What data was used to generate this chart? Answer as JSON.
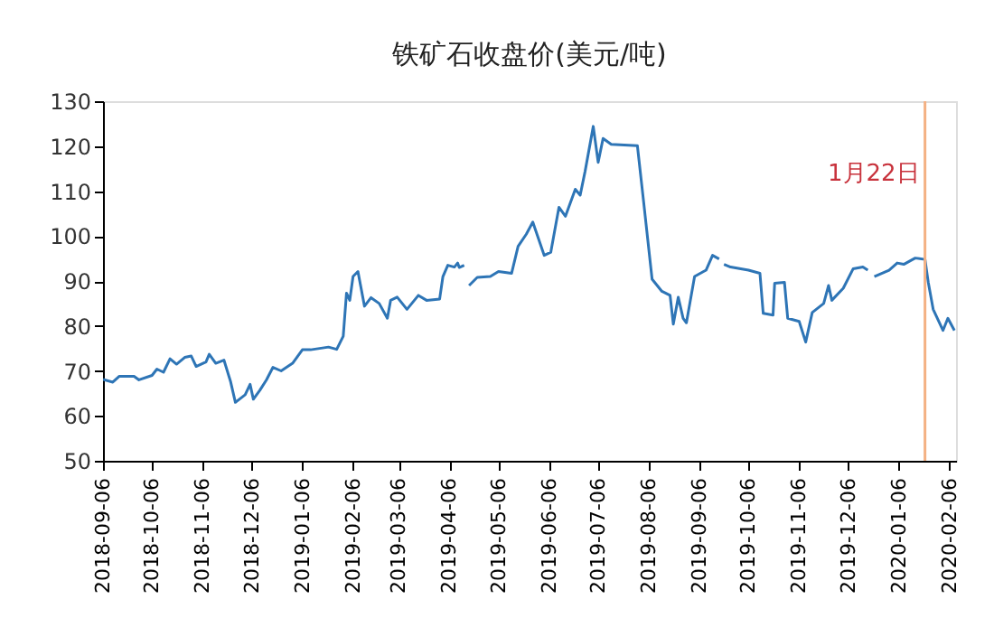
{
  "chart_data": {
    "type": "line",
    "title": "铁矿石收盘价(美元/吨)",
    "x": [
      "2018-09-06",
      "2018-09-12",
      "2018-09-16",
      "2018-09-25",
      "2018-09-28",
      "2018-10-06",
      "2018-10-09",
      "2018-10-13",
      "2018-10-17",
      "2018-10-21",
      "2018-10-26",
      "2018-10-30",
      "2018-11-02",
      "2018-11-08",
      "2018-11-10",
      "2018-11-14",
      "2018-11-19",
      "2018-11-23",
      "2018-11-26",
      "2018-12-02",
      "2018-12-05",
      "2018-12-07",
      "2018-12-11",
      "2018-12-15",
      "2018-12-19",
      "2018-12-24",
      "2018-12-31",
      "2019-01-06",
      "2019-01-11",
      "2019-01-22",
      "2019-01-27",
      "2019-01-31",
      "2019-02-02",
      "2019-02-04",
      "2019-02-06",
      "2019-02-09",
      "2019-02-13",
      "2019-02-17",
      "2019-02-22",
      "2019-02-27",
      "2019-03-01",
      "2019-03-05",
      "2019-03-11",
      "2019-03-18",
      "2019-03-23",
      "2019-03-31",
      "2019-04-02",
      "2019-04-05",
      "2019-04-09",
      "2019-04-11",
      "2019-04-12",
      "2019-04-15",
      "2019-04-16",
      "2019-04-18",
      "2019-04-23",
      "2019-05-01",
      "2019-05-06",
      "2019-05-14",
      "2019-05-18",
      "2019-05-23",
      "2019-05-27",
      "2019-06-03",
      "2019-06-07",
      "2019-06-12",
      "2019-06-16",
      "2019-06-22",
      "2019-06-25",
      "2019-06-28",
      "2019-07-03",
      "2019-07-06",
      "2019-07-09",
      "2019-07-14",
      "2019-07-30",
      "2019-08-03",
      "2019-08-08",
      "2019-08-14",
      "2019-08-19",
      "2019-08-21",
      "2019-08-24",
      "2019-08-27",
      "2019-08-29",
      "2019-09-03",
      "2019-09-10",
      "2019-09-14",
      "2019-09-18",
      "2019-09-20",
      "2019-09-21",
      "2019-09-25",
      "2019-10-06",
      "2019-10-13",
      "2019-10-15",
      "2019-10-21",
      "2019-10-22",
      "2019-10-28",
      "2019-10-30",
      "2019-11-06",
      "2019-11-10",
      "2019-11-14",
      "2019-11-21",
      "2019-11-24",
      "2019-11-26",
      "2019-12-03",
      "2019-12-09",
      "2019-12-15",
      "2019-12-18",
      "2019-12-20",
      "2019-12-22",
      "2019-12-31",
      "2020-01-05",
      "2020-01-09",
      "2020-01-16",
      "2020-01-22",
      "2020-01-24",
      "2020-01-27",
      "2020-02-02",
      "2020-02-05",
      "2020-02-09"
    ],
    "series": [
      {
        "color": "#2e75b6",
        "values": [
          68.1,
          67.5,
          68.8,
          68.8,
          68,
          69,
          70.4,
          69.7,
          72.7,
          71.5,
          73,
          73.3,
          71,
          72,
          73.7,
          71.7,
          72.4,
          67.7,
          63,
          64.7,
          67,
          63.7,
          65.7,
          68,
          70.8,
          70,
          71.7,
          74.7,
          74.7,
          75.3,
          74.8,
          77.7,
          87.3,
          85.7,
          91,
          92.1,
          84.4,
          86.3,
          85,
          81.7,
          85.7,
          86.4,
          83.7,
          86.8,
          85.7,
          86,
          91,
          93.5,
          93.1,
          94,
          93,
          93.5,
          null,
          89,
          90.8,
          91,
          92.1,
          91.7,
          97.7,
          100.4,
          103.1,
          95.7,
          96.4,
          106.4,
          104.4,
          110.4,
          109.1,
          114.4,
          124.4,
          116.4,
          121.7,
          120.4,
          120.1,
          107,
          90.4,
          87.7,
          86.8,
          80.4,
          86.4,
          81.7,
          80.7,
          91,
          92.4,
          95.7,
          94.9,
          null,
          93.7,
          93.1,
          92.4,
          91.7,
          82.8,
          82.4,
          89.5,
          89.7,
          81.7,
          81,
          76.4,
          83,
          85,
          89,
          85.7,
          88.4,
          92.7,
          93.1,
          92.4,
          null,
          91,
          92.4,
          94,
          93.7,
          95.1,
          94.8,
          89.7,
          83.7,
          79,
          81.7,
          79
        ]
      }
    ],
    "xlim": [
      "2018-09-06",
      "2020-02-10"
    ],
    "xticks": [
      "2018-09-06",
      "2018-10-06",
      "2018-11-06",
      "2018-12-06",
      "2019-01-06",
      "2019-02-06",
      "2019-03-06",
      "2019-04-06",
      "2019-05-06",
      "2019-06-06",
      "2019-07-06",
      "2019-08-06",
      "2019-09-06",
      "2019-10-06",
      "2019-11-06",
      "2019-12-06",
      "2020-01-06",
      "2020-02-06"
    ],
    "ylim": [
      50,
      130
    ],
    "yticks": [
      50,
      60,
      70,
      80,
      90,
      100,
      110,
      120,
      130
    ],
    "ref_lines": [
      {
        "axis": "x",
        "value": "2020-01-22",
        "label": "1月22日",
        "color": "#f4b183"
      }
    ],
    "grid": false
  }
}
